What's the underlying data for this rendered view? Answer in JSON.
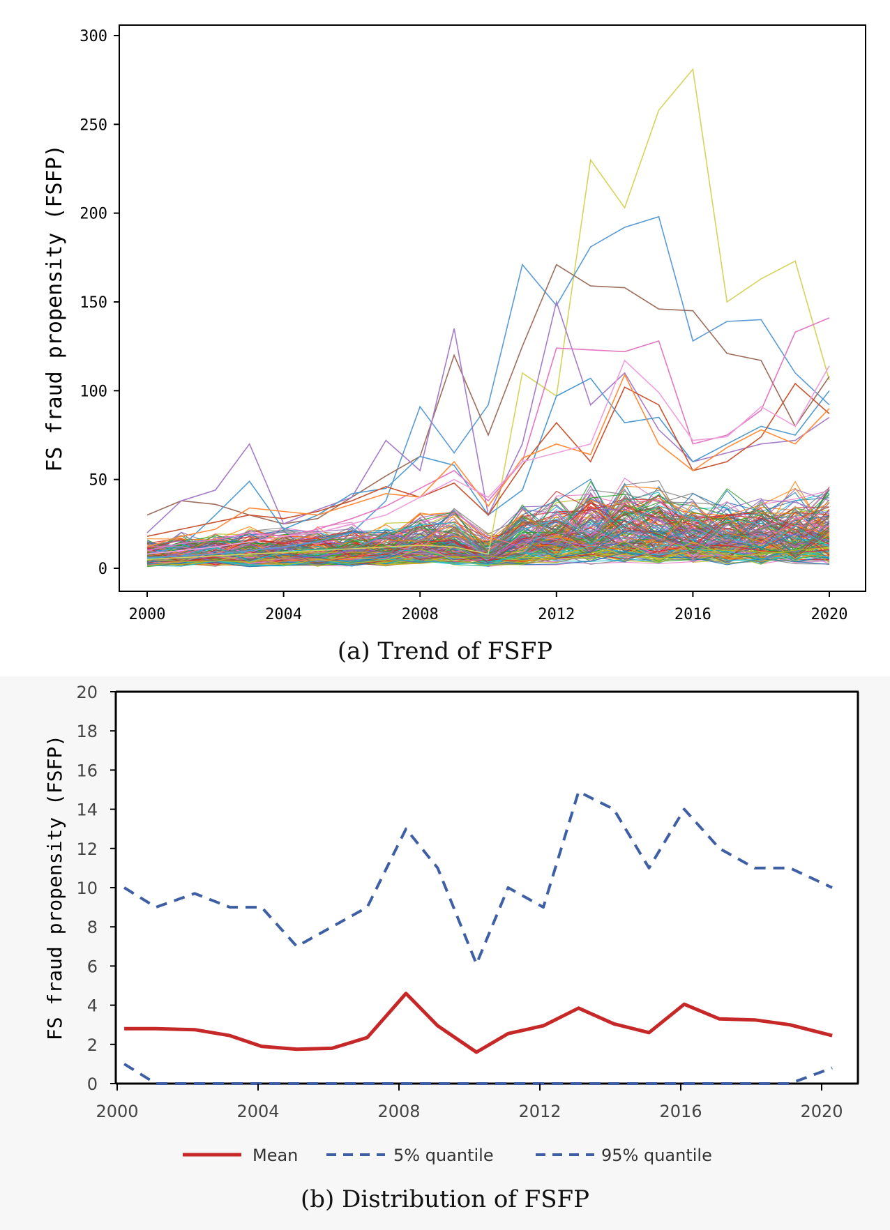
{
  "figure": {
    "caption_a": "(a) Trend of FSFP",
    "caption_b": "(b) Distribution of FSFP"
  },
  "chart_data": [
    {
      "type": "line",
      "ylabel": "FS fraud propensity (FSFP)",
      "xlabel": "",
      "xlim": [
        2000,
        2020
      ],
      "ylim": [
        0,
        300
      ],
      "x_ticks": [
        "2000",
        "2004",
        "2008",
        "2012",
        "2016",
        "2020"
      ],
      "y_ticks": [
        "0",
        "50",
        "100",
        "150",
        "200",
        "250",
        "300"
      ],
      "legend": "none",
      "grid": false,
      "x": [
        2000,
        2001,
        2002,
        2003,
        2004,
        2005,
        2006,
        2007,
        2008,
        2009,
        2010,
        2011,
        2012,
        2013,
        2014,
        2015,
        2016,
        2017,
        2018,
        2019,
        2020
      ],
      "highlighted_series": [
        {
          "color": "#d4d45a",
          "values": [
            5,
            6,
            7,
            8,
            9,
            10,
            11,
            12,
            13,
            12,
            8,
            110,
            97,
            230,
            203,
            258,
            281,
            150,
            163,
            173,
            106
          ]
        },
        {
          "color": "#5b9bd5",
          "values": [
            6,
            7,
            8,
            10,
            12,
            15,
            20,
            38,
            91,
            65,
            92,
            171,
            148,
            181,
            192,
            198,
            128,
            139,
            140,
            110,
            92
          ]
        },
        {
          "color": "#9e6e5c",
          "values": [
            30,
            38,
            36,
            30,
            25,
            28,
            40,
            52,
            63,
            120,
            75,
            125,
            171,
            159,
            158,
            146,
            145,
            121,
            117,
            80,
            108
          ]
        },
        {
          "color": "#a67bc9",
          "values": [
            20,
            38,
            44,
            70,
            25,
            33,
            40,
            72,
            55,
            135,
            30,
            70,
            150,
            92,
            110,
            78,
            60,
            65,
            70,
            72,
            85
          ]
        },
        {
          "color": "#4f9bd0",
          "values": [
            8,
            12,
            30,
            49,
            22,
            30,
            42,
            45,
            63,
            58,
            30,
            44,
            97,
            107,
            82,
            85,
            60,
            70,
            80,
            75,
            100
          ]
        },
        {
          "color": "#e377c2",
          "values": [
            10,
            14,
            16,
            20,
            18,
            22,
            28,
            35,
            45,
            55,
            38,
            60,
            124,
            123,
            122,
            128,
            70,
            75,
            89,
            133,
            141
          ]
        },
        {
          "color": "#c9522f",
          "values": [
            18,
            22,
            26,
            30,
            28,
            32,
            38,
            46,
            40,
            48,
            30,
            58,
            82,
            60,
            102,
            92,
            55,
            60,
            74,
            104,
            87
          ]
        },
        {
          "color": "#ff8c3a",
          "values": [
            12,
            18,
            22,
            34,
            32,
            30,
            36,
            42,
            40,
            60,
            35,
            62,
            70,
            64,
            109,
            70,
            55,
            68,
            78,
            70,
            90
          ]
        },
        {
          "color": "#ee9fdd",
          "values": [
            8,
            10,
            12,
            15,
            18,
            20,
            25,
            30,
            40,
            50,
            40,
            60,
            65,
            70,
            117,
            99,
            72,
            74,
            91,
            80,
            114
          ]
        }
      ],
      "background_series_note": ""
    },
    {
      "type": "line",
      "ylabel": "FS fraud propensity (FSFP)",
      "xlabel": "",
      "xlim": [
        2000,
        2020
      ],
      "ylim": [
        0,
        20
      ],
      "x_ticks": [
        "2000",
        "2004",
        "2008",
        "2012",
        "2016",
        "2020"
      ],
      "y_ticks": [
        "0",
        "2",
        "4",
        "6",
        "8",
        "10",
        "12",
        "14",
        "16",
        "18",
        "20"
      ],
      "legend": "bottom",
      "grid": false,
      "series": [
        {
          "name": "Mean",
          "color": "#c62828",
          "style": "solid",
          "x": [
            2000.2,
            2001.1,
            2002.2,
            2003.2,
            2004.1,
            2005.1,
            2006.1,
            2007.1,
            2008.2,
            2009.1,
            2010.2,
            2011.1,
            2012.1,
            2013.1,
            2014.1,
            2015.1,
            2016.1,
            2017.1,
            2018.1,
            2019.1,
            2020.3
          ],
          "values": [
            2.8,
            2.8,
            2.75,
            2.45,
            1.9,
            1.75,
            1.8,
            2.35,
            4.6,
            2.95,
            1.6,
            2.55,
            2.95,
            3.85,
            3.05,
            2.6,
            4.05,
            3.3,
            3.25,
            3.0,
            2.45
          ]
        },
        {
          "name": "5% quantile",
          "color": "#3f5fa5",
          "style": "dashed",
          "x": [
            2000.2,
            2001.1,
            2002.2,
            2003.2,
            2004.1,
            2005.1,
            2006.1,
            2007.1,
            2008.2,
            2009.1,
            2010.2,
            2011.1,
            2012.1,
            2013.1,
            2014.1,
            2015.1,
            2016.1,
            2017.1,
            2018.1,
            2019.1,
            2020.3
          ],
          "values": [
            10,
            9,
            9.7,
            9,
            9,
            7,
            8,
            9,
            13,
            11,
            6.1,
            10,
            9,
            14.9,
            14,
            11,
            14,
            12,
            11,
            11,
            10
          ]
        },
        {
          "name": "95% quantile",
          "color": "#3f5fa5",
          "style": "dashed",
          "x": [
            2000.2,
            2001.1,
            2002.2,
            2003.2,
            2004.1,
            2005.1,
            2006.1,
            2007.1,
            2008.2,
            2009.1,
            2010.2,
            2011.1,
            2012.1,
            2013.1,
            2014.1,
            2015.1,
            2016.1,
            2017.1,
            2018.1,
            2019.1,
            2020.3
          ],
          "values": [
            1,
            0,
            0,
            0,
            0,
            0,
            0,
            0,
            0,
            0,
            0,
            0,
            0,
            0,
            0,
            0,
            0,
            0,
            0,
            0,
            0.8
          ]
        }
      ]
    }
  ]
}
